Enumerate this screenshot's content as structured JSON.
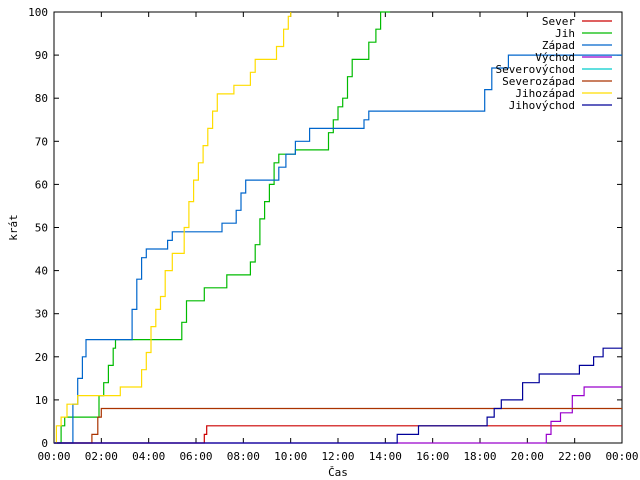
{
  "chart_data": {
    "type": "line",
    "step": true,
    "title": "",
    "xlabel": "Čas",
    "ylabel": "krát",
    "xlim": [
      0,
      24
    ],
    "ylim": [
      0,
      100
    ],
    "xticks": [
      {
        "value": 0,
        "label": "00:00"
      },
      {
        "value": 2,
        "label": "02:00"
      },
      {
        "value": 4,
        "label": "04:00"
      },
      {
        "value": 6,
        "label": "06:00"
      },
      {
        "value": 8,
        "label": "08:00"
      },
      {
        "value": 10,
        "label": "10:00"
      },
      {
        "value": 12,
        "label": "12:00"
      },
      {
        "value": 14,
        "label": "14:00"
      },
      {
        "value": 16,
        "label": "16:00"
      },
      {
        "value": 18,
        "label": "18:00"
      },
      {
        "value": 20,
        "label": "20:00"
      },
      {
        "value": 22,
        "label": "22:00"
      },
      {
        "value": 24,
        "label": "00:00"
      }
    ],
    "yticks": [
      0,
      10,
      20,
      30,
      40,
      50,
      60,
      70,
      80,
      90,
      100
    ],
    "grid": false,
    "legend_position": "top-right",
    "series": [
      {
        "name": "Sever",
        "color": "#cc0000",
        "points": [
          [
            0,
            0
          ],
          [
            6.3,
            0
          ],
          [
            6.35,
            2
          ],
          [
            6.45,
            4
          ],
          [
            24,
            4
          ]
        ]
      },
      {
        "name": "Jih",
        "color": "#00bb00",
        "points": [
          [
            0,
            0
          ],
          [
            0.2,
            0
          ],
          [
            0.3,
            4
          ],
          [
            0.45,
            6
          ],
          [
            1.75,
            6
          ],
          [
            1.9,
            11
          ],
          [
            2.1,
            14
          ],
          [
            2.3,
            18
          ],
          [
            2.5,
            22
          ],
          [
            2.6,
            24
          ],
          [
            5.2,
            24
          ],
          [
            5.4,
            28
          ],
          [
            5.6,
            33
          ],
          [
            6.1,
            33
          ],
          [
            6.35,
            36
          ],
          [
            7.1,
            36
          ],
          [
            7.3,
            39
          ],
          [
            8.1,
            39
          ],
          [
            8.3,
            42
          ],
          [
            8.5,
            46
          ],
          [
            8.7,
            52
          ],
          [
            8.9,
            56
          ],
          [
            9.1,
            60
          ],
          [
            9.3,
            65
          ],
          [
            9.5,
            67
          ],
          [
            10.0,
            67
          ],
          [
            10.2,
            68
          ],
          [
            11.4,
            68
          ],
          [
            11.6,
            72
          ],
          [
            11.8,
            75
          ],
          [
            12.0,
            78
          ],
          [
            12.2,
            80
          ],
          [
            12.4,
            85
          ],
          [
            12.6,
            89
          ],
          [
            13.1,
            89
          ],
          [
            13.3,
            93
          ],
          [
            13.6,
            96
          ],
          [
            13.8,
            100
          ],
          [
            14.2,
            100
          ]
        ]
      },
      {
        "name": "Západ",
        "color": "#0066cc",
        "points": [
          [
            0,
            0
          ],
          [
            0.6,
            0
          ],
          [
            0.8,
            9
          ],
          [
            1.0,
            15
          ],
          [
            1.2,
            20
          ],
          [
            1.35,
            24
          ],
          [
            3.1,
            24
          ],
          [
            3.3,
            31
          ],
          [
            3.5,
            38
          ],
          [
            3.7,
            43
          ],
          [
            3.9,
            45
          ],
          [
            4.6,
            45
          ],
          [
            4.8,
            47
          ],
          [
            5.0,
            49
          ],
          [
            6.9,
            49
          ],
          [
            7.1,
            51
          ],
          [
            7.5,
            51
          ],
          [
            7.7,
            54
          ],
          [
            7.9,
            58
          ],
          [
            8.1,
            61
          ],
          [
            9.3,
            61
          ],
          [
            9.5,
            64
          ],
          [
            9.8,
            67
          ],
          [
            10.0,
            67
          ],
          [
            10.2,
            70
          ],
          [
            10.5,
            70
          ],
          [
            10.8,
            73
          ],
          [
            12.9,
            73
          ],
          [
            13.1,
            75
          ],
          [
            13.3,
            77
          ],
          [
            17.9,
            77
          ],
          [
            18.2,
            82
          ],
          [
            18.5,
            87
          ],
          [
            19.0,
            87
          ],
          [
            19.2,
            90
          ],
          [
            24,
            90
          ]
        ]
      },
      {
        "name": "Východ",
        "color": "#9900cc",
        "points": [
          [
            0,
            0
          ],
          [
            20.6,
            0
          ],
          [
            20.8,
            2
          ],
          [
            21.0,
            5
          ],
          [
            21.4,
            7
          ],
          [
            21.7,
            7
          ],
          [
            21.9,
            11
          ],
          [
            22.2,
            11
          ],
          [
            22.4,
            13
          ],
          [
            24,
            13
          ]
        ]
      },
      {
        "name": "Severovýchod",
        "color": "#00cccc",
        "points": []
      },
      {
        "name": "Severozápad",
        "color": "#aa3300",
        "points": [
          [
            0,
            0
          ],
          [
            1.5,
            0
          ],
          [
            1.6,
            2
          ],
          [
            1.85,
            6
          ],
          [
            2.0,
            8
          ],
          [
            24,
            8
          ]
        ]
      },
      {
        "name": "Jihozápad",
        "color": "#ffdd00",
        "points": [
          [
            0,
            0
          ],
          [
            0.1,
            4
          ],
          [
            0.3,
            6
          ],
          [
            0.55,
            9
          ],
          [
            1.0,
            11
          ],
          [
            2.6,
            11
          ],
          [
            2.8,
            13
          ],
          [
            3.5,
            13
          ],
          [
            3.7,
            17
          ],
          [
            3.9,
            21
          ],
          [
            4.1,
            27
          ],
          [
            4.3,
            31
          ],
          [
            4.5,
            34
          ],
          [
            4.7,
            40
          ],
          [
            5.0,
            44
          ],
          [
            5.3,
            44
          ],
          [
            5.5,
            50
          ],
          [
            5.7,
            56
          ],
          [
            5.9,
            61
          ],
          [
            6.1,
            65
          ],
          [
            6.3,
            69
          ],
          [
            6.5,
            73
          ],
          [
            6.7,
            77
          ],
          [
            6.9,
            81
          ],
          [
            7.4,
            81
          ],
          [
            7.6,
            83
          ],
          [
            8.0,
            83
          ],
          [
            8.3,
            86
          ],
          [
            8.5,
            89
          ],
          [
            9.2,
            89
          ],
          [
            9.4,
            92
          ],
          [
            9.7,
            96
          ],
          [
            9.9,
            99
          ],
          [
            10.0,
            100
          ]
        ]
      },
      {
        "name": "Jihovýchod",
        "color": "#000099",
        "points": [
          [
            0,
            0
          ],
          [
            14.3,
            0
          ],
          [
            14.5,
            2
          ],
          [
            15.2,
            2
          ],
          [
            15.4,
            4
          ],
          [
            18.1,
            4
          ],
          [
            18.3,
            6
          ],
          [
            18.6,
            8
          ],
          [
            18.9,
            10
          ],
          [
            19.6,
            10
          ],
          [
            19.8,
            14
          ],
          [
            20.3,
            14
          ],
          [
            20.5,
            16
          ],
          [
            22.0,
            16
          ],
          [
            22.2,
            18
          ],
          [
            22.6,
            18
          ],
          [
            22.8,
            20
          ],
          [
            23.2,
            22
          ],
          [
            24,
            22
          ]
        ]
      }
    ]
  }
}
